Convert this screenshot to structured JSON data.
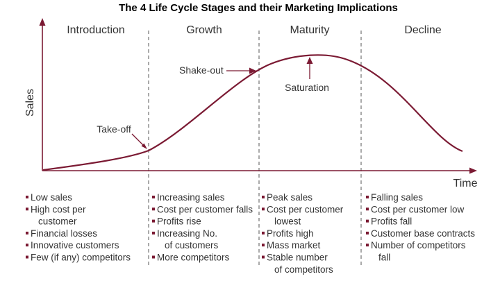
{
  "title": "The 4 Life Cycle Stages and their Marketing Implications",
  "axes": {
    "y_label": "Sales",
    "x_label": "Time"
  },
  "stages": [
    {
      "name": "Introduction",
      "bullets": [
        [
          "Low sales"
        ],
        [
          "High cost per",
          "customer"
        ],
        [
          "Financial losses"
        ],
        [
          "Innovative customers"
        ],
        [
          "Few (if any) competitors"
        ]
      ]
    },
    {
      "name": "Growth",
      "bullets": [
        [
          "Increasing sales"
        ],
        [
          "Cost per customer falls"
        ],
        [
          "Profits rise"
        ],
        [
          "Increasing No.",
          "of customers"
        ],
        [
          "More competitors"
        ]
      ]
    },
    {
      "name": "Maturity",
      "bullets": [
        [
          "Peak sales"
        ],
        [
          "Cost per customer",
          "lowest"
        ],
        [
          "Profits high"
        ],
        [
          "Mass market"
        ],
        [
          "Stable number",
          "of competitors"
        ]
      ]
    },
    {
      "name": "Decline",
      "bullets": [
        [
          "Falling sales"
        ],
        [
          "Cost per customer low"
        ],
        [
          "Profits fall"
        ],
        [
          "Customer base contracts"
        ],
        [
          "Number of competitors",
          "fall"
        ]
      ]
    }
  ],
  "annotations": {
    "take_off": "Take-off",
    "shake_out": "Shake-out",
    "saturation": "Saturation"
  },
  "colors": {
    "axis": "#7b1a33",
    "curve": "#7b1a33",
    "bullet": "#7b1a33",
    "text": "#333333",
    "divider": "#555555"
  }
}
